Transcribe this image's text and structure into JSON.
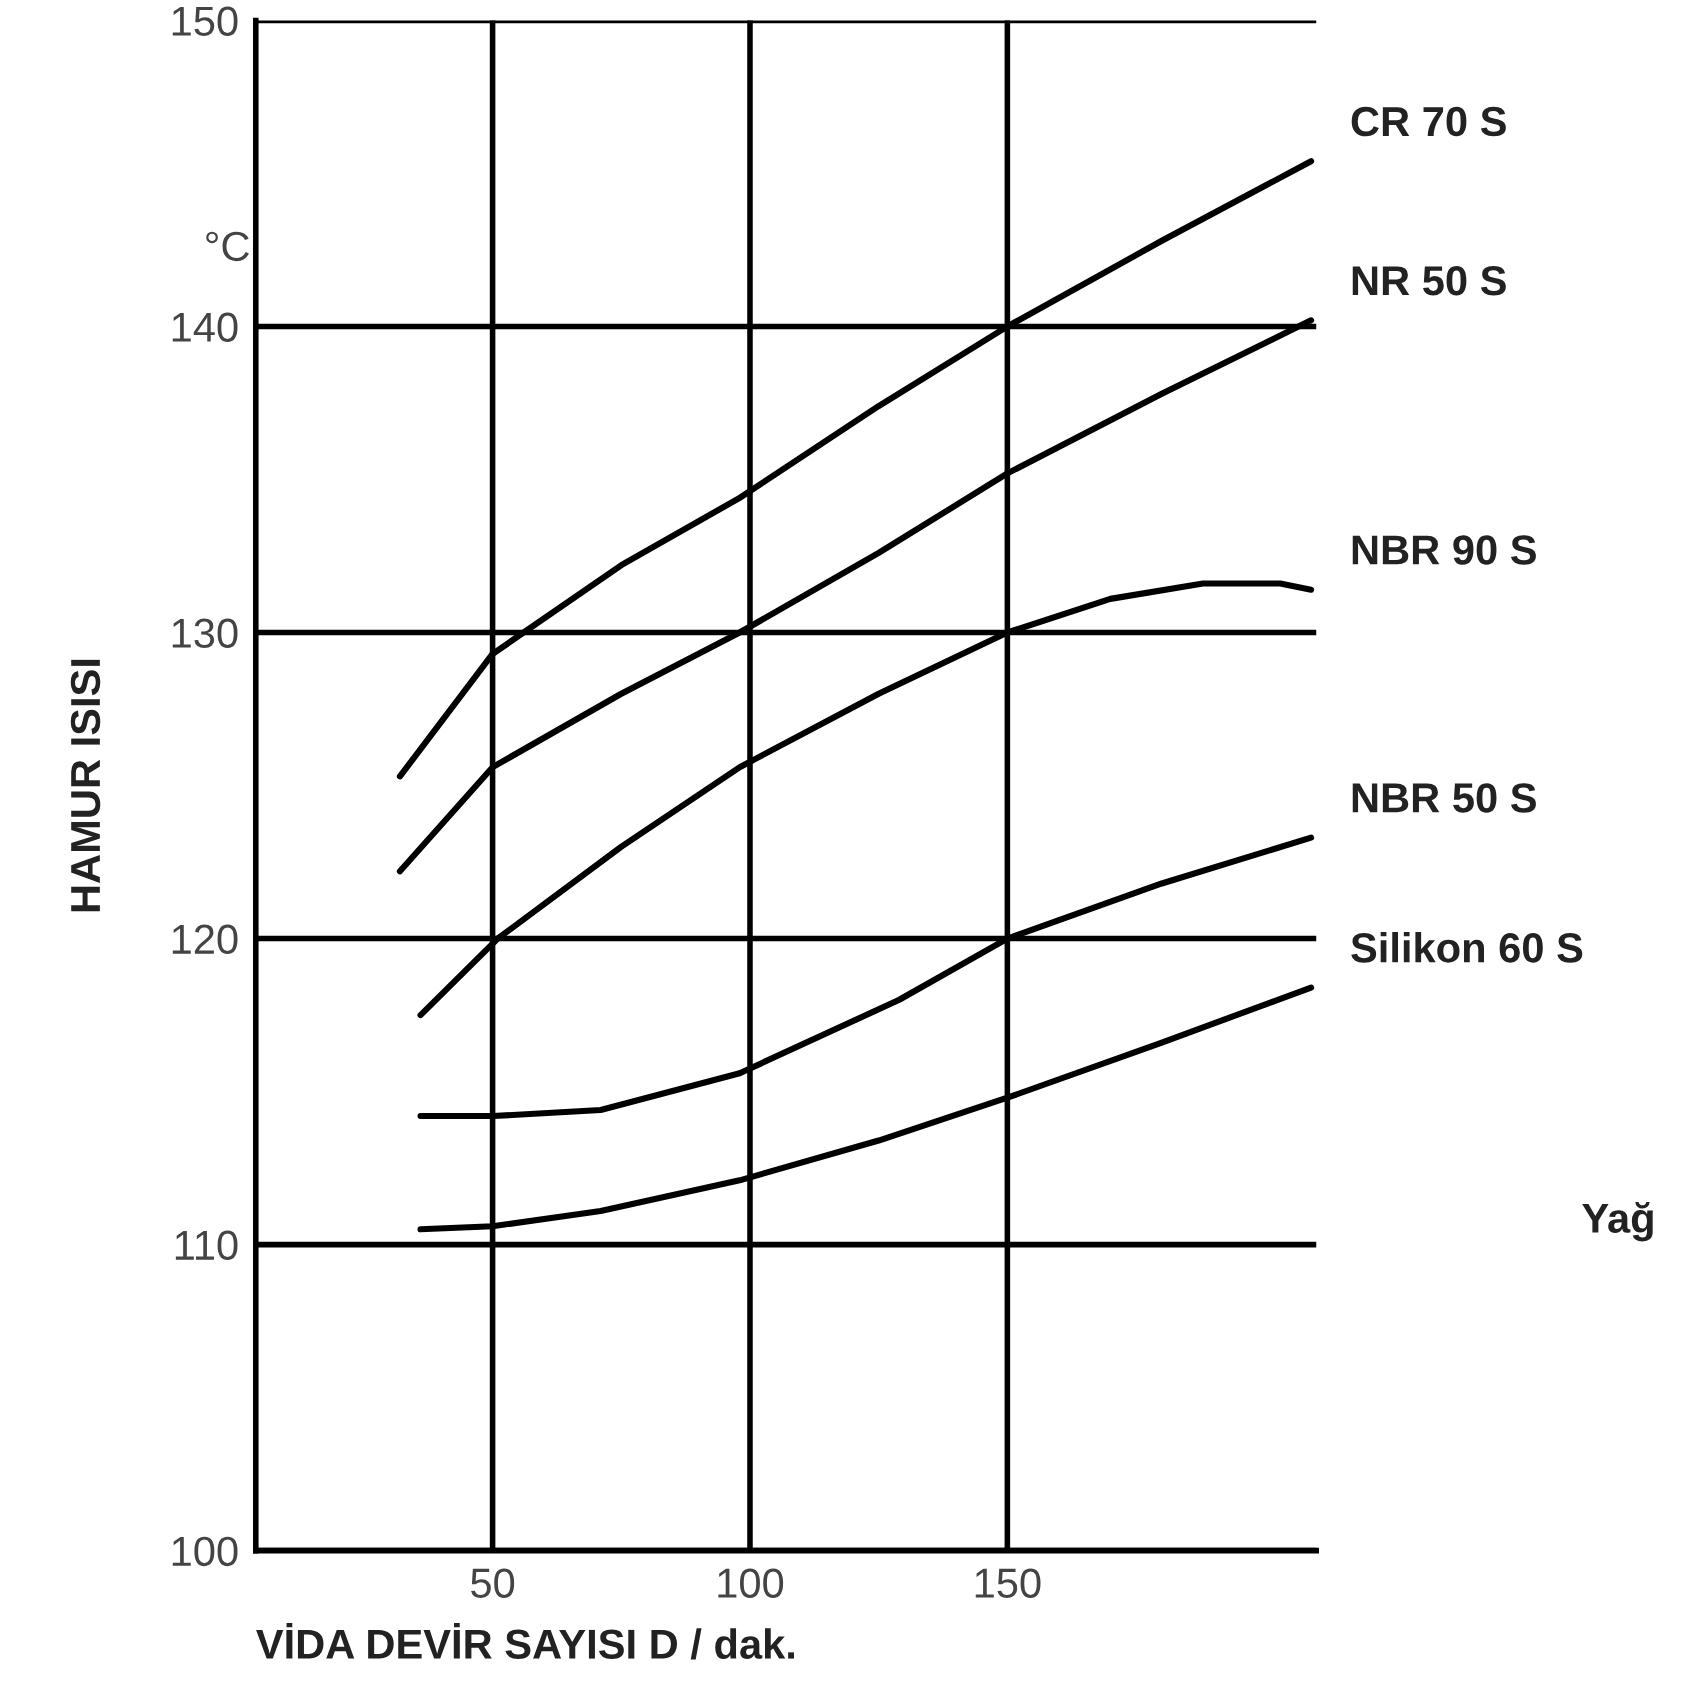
{
  "chart_data": {
    "type": "line",
    "xlabel": "VİDA DEVİR SAYISI D / dak.",
    "ylabel": "HAMUR ISISI",
    "annotations": [
      "°C",
      "Yağ"
    ],
    "xlim": [
      4,
      210
    ],
    "ylim": [
      100,
      150
    ],
    "xticks": [
      50,
      100,
      150
    ],
    "yticks": [
      100,
      110,
      120,
      130,
      140,
      150
    ],
    "grid": true,
    "legend": false,
    "marker": "none",
    "line_style": "solid",
    "series": [
      {
        "name": "CR 70 S",
        "color": "#000000",
        "x": [
          32,
          50,
          75,
          98,
          125,
          150,
          180,
          209
        ],
        "values": [
          125.3,
          129.3,
          132.2,
          134.4,
          137.4,
          140,
          142.8,
          145.4
        ]
      },
      {
        "name": "NR 50 S",
        "color": "#000000",
        "x": [
          32,
          50,
          75,
          98,
          125,
          150,
          180,
          209
        ],
        "values": [
          122.2,
          125.6,
          128,
          130,
          132.6,
          135.2,
          137.8,
          140.2
        ]
      },
      {
        "name": "NBR 90 S",
        "color": "#000000",
        "x": [
          36,
          51,
          75,
          98,
          125,
          150,
          170,
          188,
          203,
          209
        ],
        "values": [
          117.5,
          120,
          123,
          125.6,
          128,
          130,
          131.1,
          131.6,
          131.6,
          131.4
        ]
      },
      {
        "name": "NBR 50 S",
        "color": "#000000",
        "x": [
          36,
          50,
          71,
          98,
          129,
          150,
          180,
          209
        ],
        "values": [
          114.2,
          114.2,
          114.4,
          115.6,
          118,
          120,
          121.8,
          123.3
        ]
      },
      {
        "name": "Silikon 60 S",
        "color": "#000000",
        "x": [
          36,
          50,
          71,
          98,
          125,
          150,
          180,
          209
        ],
        "values": [
          110.5,
          110.6,
          111.1,
          112.1,
          113.4,
          114.8,
          116.6,
          118.4
        ]
      }
    ]
  }
}
